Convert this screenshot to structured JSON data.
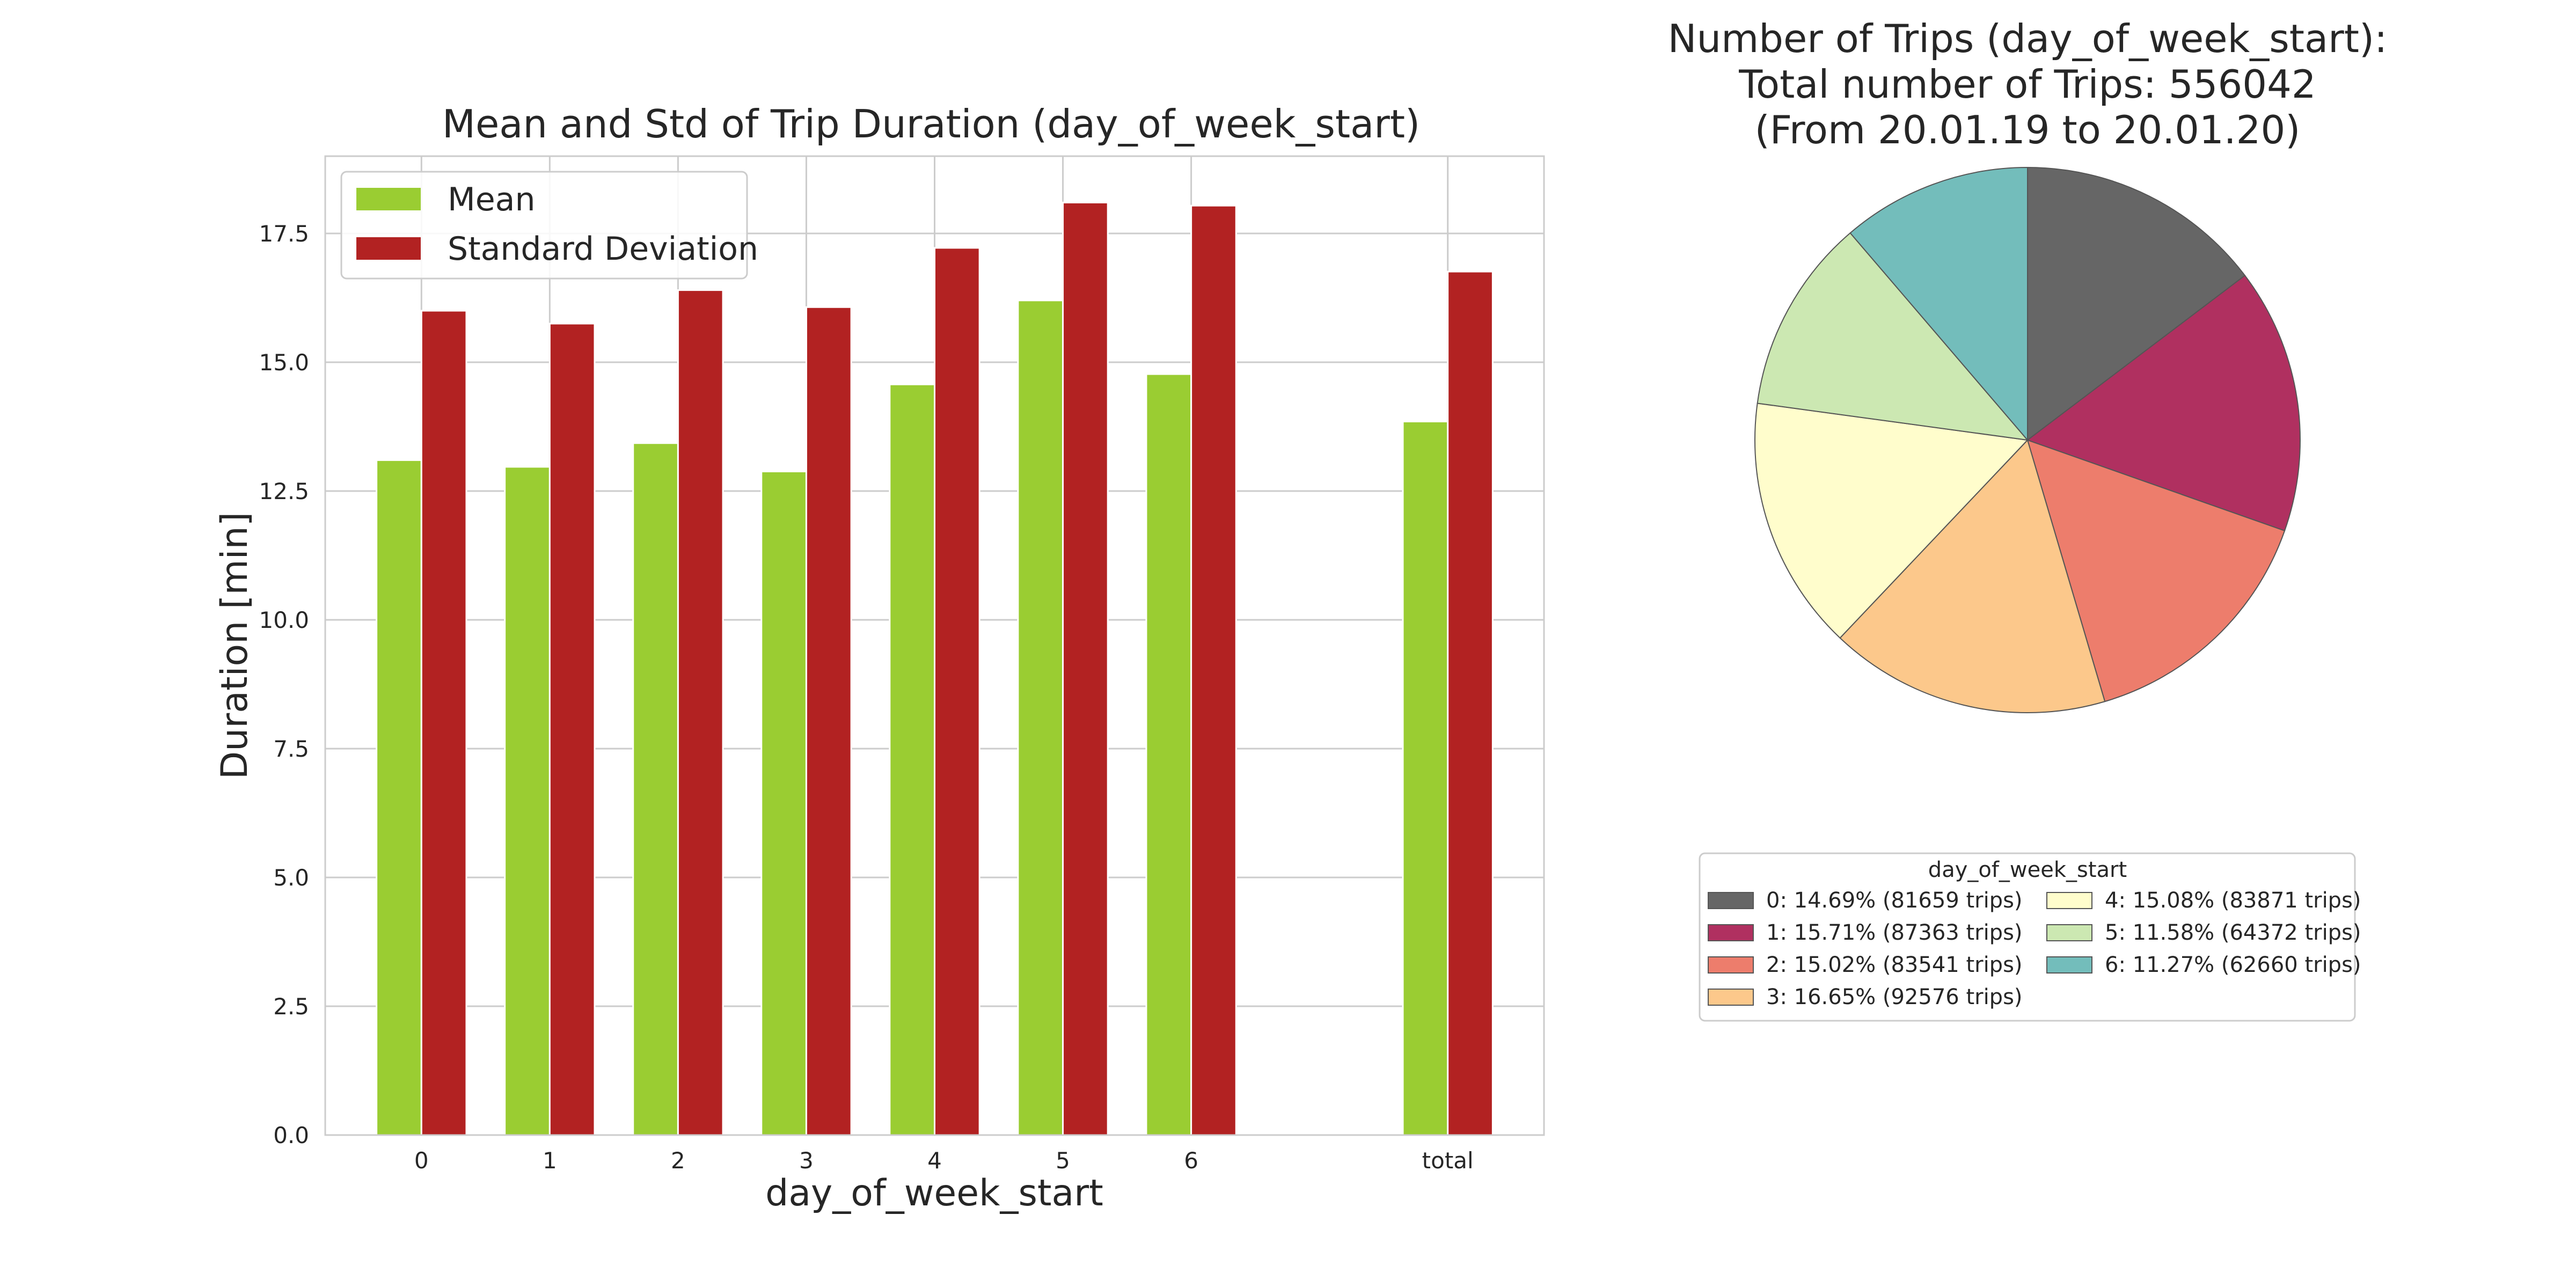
{
  "chart_data": [
    {
      "type": "bar",
      "title": "Mean and Std of Trip Duration (day_of_week_start)",
      "xlabel": "day_of_week_start",
      "ylabel": "Duration [min]",
      "categories": [
        "0",
        "1",
        "2",
        "3",
        "4",
        "5",
        "6",
        "total"
      ],
      "category_positions": [
        0,
        1,
        2,
        3,
        4,
        5,
        6,
        8
      ],
      "ylim": [
        0,
        19
      ],
      "yticks": [
        0.0,
        2.5,
        5.0,
        7.5,
        10.0,
        12.5,
        15.0,
        17.5
      ],
      "ytick_labels": [
        "0.0",
        "2.5",
        "5.0",
        "7.5",
        "10.0",
        "12.5",
        "15.0",
        "17.5"
      ],
      "grid": true,
      "legend_position": "upper-left",
      "series": [
        {
          "name": "Mean",
          "color": "#9ACD32",
          "values": [
            13.1,
            12.97,
            13.43,
            12.88,
            14.57,
            16.2,
            14.77,
            13.85
          ]
        },
        {
          "name": "Standard Deviation",
          "color": "#B22222",
          "values": [
            16.0,
            15.75,
            16.4,
            16.07,
            17.22,
            18.1,
            18.04,
            16.76
          ]
        }
      ]
    },
    {
      "type": "pie",
      "title_lines": [
        "Number of Trips (day_of_week_start):",
        "Total number of Trips: 556042",
        "(From 20.01.19 to 20.01.20)"
      ],
      "legend_title": "day_of_week_start",
      "slices": [
        {
          "label": "0: 14.69% (81659 trips)",
          "value": 81659,
          "color": "#666666"
        },
        {
          "label": "1: 15.71% (87363 trips)",
          "value": 87363,
          "color": "#B03060"
        },
        {
          "label": "2: 15.02% (83541 trips)",
          "value": 83541,
          "color": "#ED7D6C"
        },
        {
          "label": "3: 16.65% (92576 trips)",
          "value": 92576,
          "color": "#FCC88B"
        },
        {
          "label": "4: 15.08% (83871 trips)",
          "value": 83871,
          "color": "#FFFDCC"
        },
        {
          "label": "5: 11.58% (64372 trips)",
          "value": 64372,
          "color": "#CCE8B2"
        },
        {
          "label": "6: 11.27% (62660 trips)",
          "value": 62660,
          "color": "#73BDBB"
        }
      ]
    }
  ]
}
